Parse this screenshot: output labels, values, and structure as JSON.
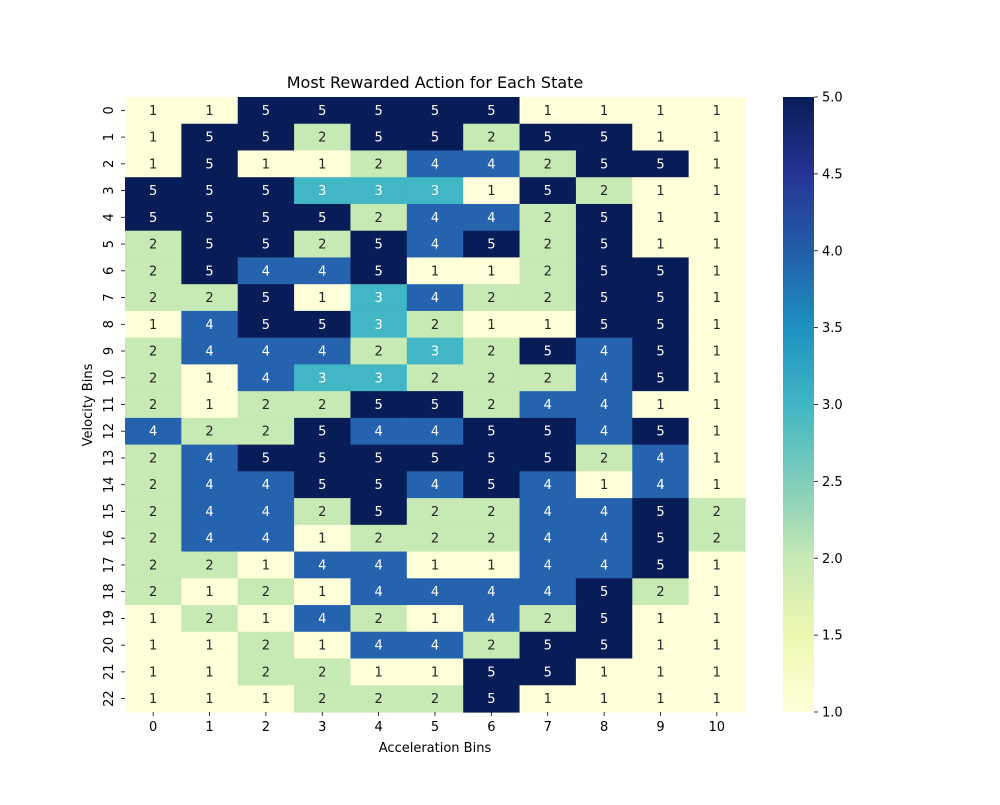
{
  "chart_data": {
    "type": "heatmap",
    "title": "Most Rewarded Action for Each State",
    "xlabel": "Acceleration Bins",
    "ylabel": "Velocity Bins",
    "x_categories": [
      "0",
      "1",
      "2",
      "3",
      "4",
      "5",
      "6",
      "7",
      "8",
      "9",
      "10"
    ],
    "y_categories": [
      "0",
      "1",
      "2",
      "3",
      "4",
      "5",
      "6",
      "7",
      "8",
      "9",
      "10",
      "11",
      "12",
      "13",
      "14",
      "15",
      "16",
      "17",
      "18",
      "19",
      "20",
      "21",
      "22"
    ],
    "values": [
      [
        1,
        1,
        5,
        5,
        5,
        5,
        5,
        1,
        1,
        1,
        1
      ],
      [
        1,
        5,
        5,
        2,
        5,
        5,
        2,
        5,
        5,
        1,
        1
      ],
      [
        1,
        5,
        1,
        1,
        2,
        4,
        4,
        2,
        5,
        5,
        1
      ],
      [
        5,
        5,
        5,
        3,
        3,
        3,
        1,
        5,
        2,
        1,
        1
      ],
      [
        5,
        5,
        5,
        5,
        2,
        4,
        4,
        2,
        5,
        1,
        1
      ],
      [
        2,
        5,
        5,
        2,
        5,
        4,
        5,
        2,
        5,
        1,
        1
      ],
      [
        2,
        5,
        4,
        4,
        5,
        1,
        1,
        2,
        5,
        5,
        1
      ],
      [
        2,
        2,
        5,
        1,
        3,
        4,
        2,
        2,
        5,
        5,
        1
      ],
      [
        1,
        4,
        5,
        5,
        3,
        2,
        1,
        1,
        5,
        5,
        1
      ],
      [
        2,
        4,
        4,
        4,
        2,
        3,
        2,
        5,
        4,
        5,
        1
      ],
      [
        2,
        1,
        4,
        3,
        3,
        2,
        2,
        2,
        4,
        5,
        1
      ],
      [
        2,
        1,
        2,
        2,
        5,
        5,
        2,
        4,
        4,
        1,
        1
      ],
      [
        4,
        2,
        2,
        5,
        4,
        4,
        5,
        5,
        4,
        5,
        1
      ],
      [
        2,
        4,
        5,
        5,
        5,
        5,
        5,
        5,
        2,
        4,
        1
      ],
      [
        2,
        4,
        4,
        5,
        5,
        4,
        5,
        4,
        1,
        4,
        1
      ],
      [
        2,
        4,
        4,
        2,
        5,
        2,
        2,
        4,
        4,
        5,
        2
      ],
      [
        2,
        4,
        4,
        1,
        2,
        2,
        2,
        4,
        4,
        5,
        2
      ],
      [
        2,
        2,
        1,
        4,
        4,
        1,
        1,
        4,
        4,
        5,
        1
      ],
      [
        2,
        1,
        2,
        1,
        4,
        4,
        4,
        4,
        5,
        2,
        1
      ],
      [
        1,
        2,
        1,
        4,
        2,
        1,
        4,
        2,
        5,
        1,
        1
      ],
      [
        1,
        1,
        2,
        1,
        4,
        4,
        2,
        5,
        5,
        1,
        1
      ],
      [
        1,
        1,
        2,
        2,
        1,
        1,
        5,
        5,
        1,
        1,
        1
      ],
      [
        1,
        1,
        1,
        2,
        2,
        2,
        5,
        1,
        1,
        1,
        1
      ]
    ],
    "colorbar": {
      "range": [
        1.0,
        5.0
      ],
      "ticks": [
        "1.0",
        "1.5",
        "2.0",
        "2.5",
        "3.0",
        "3.5",
        "4.0",
        "4.5",
        "5.0"
      ]
    },
    "colors": {
      "1": "#ffffd9",
      "2": "#c7e9b4",
      "3": "#41b6c4",
      "4": "#2563ae",
      "5": "#081d58",
      "annotation_light": "#ffffff",
      "annotation_dark": "#262626"
    }
  }
}
